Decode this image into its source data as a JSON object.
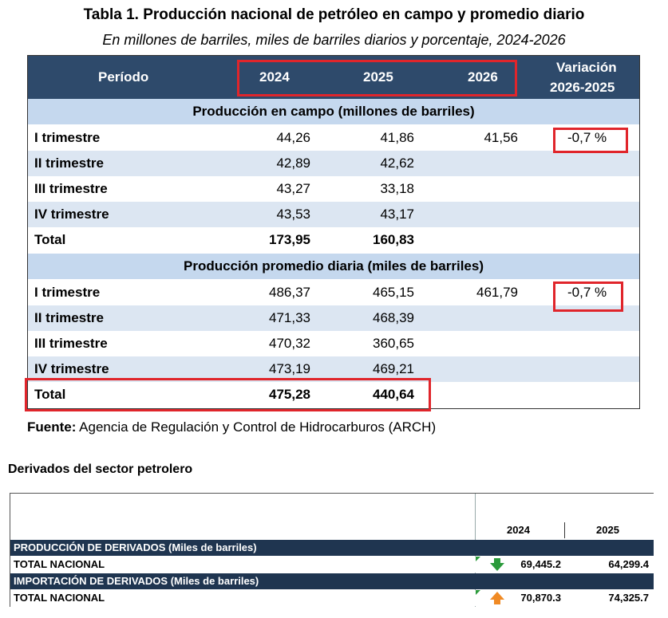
{
  "title": "Tabla 1. Producción nacional de petróleo en campo y promedio diario",
  "subtitle": "En millones de barriles, miles de barriles diarios y porcentaje, 2024-2026",
  "table1": {
    "headers": {
      "periodo": "Período",
      "y2024": "2024",
      "y2025": "2025",
      "y2026": "2026",
      "var1": "Variación",
      "var2": "2026-2025"
    },
    "section1": {
      "title": "Producción en campo (millones de barriles)",
      "rows": [
        {
          "label": "I trimestre",
          "v2024": "44,26",
          "v2025": "41,86",
          "v2026": "41,56",
          "var": "-0,7 %"
        },
        {
          "label": "II trimestre",
          "v2024": "42,89",
          "v2025": "42,62",
          "v2026": "",
          "var": ""
        },
        {
          "label": "III trimestre",
          "v2024": "43,27",
          "v2025": "33,18",
          "v2026": "",
          "var": ""
        },
        {
          "label": "IV trimestre",
          "v2024": "43,53",
          "v2025": "43,17",
          "v2026": "",
          "var": ""
        },
        {
          "label": "Total",
          "v2024": "173,95",
          "v2025": "160,83",
          "v2026": "",
          "var": ""
        }
      ]
    },
    "section2": {
      "title": "Producción promedio diaria (miles de barriles)",
      "rows": [
        {
          "label": "I trimestre",
          "v2024": "486,37",
          "v2025": "465,15",
          "v2026": "461,79",
          "var": "-0,7 %"
        },
        {
          "label": "II trimestre",
          "v2024": "471,33",
          "v2025": "468,39",
          "v2026": "",
          "var": ""
        },
        {
          "label": "III trimestre",
          "v2024": "470,32",
          "v2025": "360,65",
          "v2026": "",
          "var": ""
        },
        {
          "label": "IV trimestre",
          "v2024": "473,19",
          "v2025": "469,21",
          "v2026": "",
          "var": ""
        },
        {
          "label": "Total",
          "v2024": "475,28",
          "v2025": "440,64",
          "v2026": "",
          "var": ""
        }
      ]
    }
  },
  "source": {
    "label": "Fuente:",
    "text": " Agencia de Regulación y Control de Hidrocarburos (ARCH)"
  },
  "section_heading": "Derivados del sector petrolero",
  "table2": {
    "year_a": "2024",
    "year_b": "2025",
    "rows": [
      {
        "label": "PRODUCCIÓN DE DERIVADOS (Miles de barriles)",
        "header": true
      },
      {
        "label": "TOTAL NACIONAL",
        "v2024": "69,445.2",
        "v2025": "64,299.4",
        "trend": "down",
        "trend_color": "#2a9a3a"
      },
      {
        "label": "IMPORTACIÓN DE DERIVADOS (Miles de barriles)",
        "header": true
      },
      {
        "label": "TOTAL NACIONAL",
        "v2024": "70,870.3",
        "v2025": "74,325.7",
        "trend": "up",
        "trend_color": "#f08a24"
      }
    ]
  },
  "colors": {
    "header": "#2e4a6b",
    "section": "#c5d8ee",
    "shade": "#dce6f2",
    "highlight": "#e0252b"
  }
}
